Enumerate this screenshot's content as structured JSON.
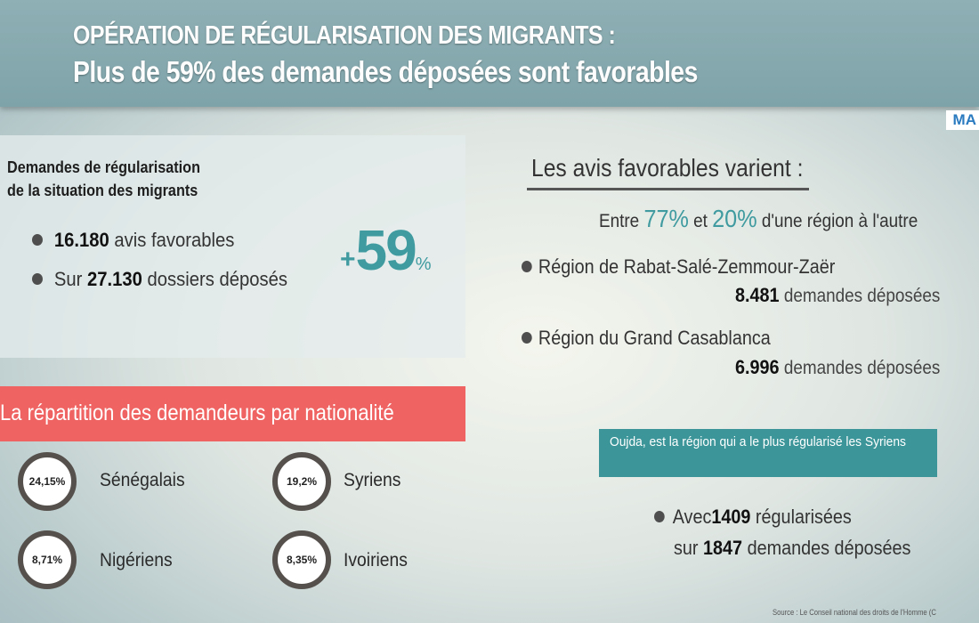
{
  "header": {
    "title_line1": "OPÉRATION DE RÉGULARISATION DES MIGRANTS :",
    "title_line2": "Plus de 59% des demandes déposées sont favorables",
    "logo": "MA"
  },
  "requests": {
    "heading_line1": "Demandes de régularisation",
    "heading_line2": "de la situation des migrants",
    "favorable_count": "16.180",
    "favorable_label": "avis favorables",
    "submitted_prefix": "Sur",
    "submitted_count": "27.130",
    "submitted_label": "dossiers déposés",
    "big_plus": "+",
    "big_value": "59",
    "big_unit": "%"
  },
  "nationality": {
    "banner": "La répartition des demandeurs par nationalité",
    "items": [
      {
        "percent": "24,15%",
        "label": "Sénégalais"
      },
      {
        "percent": "19,2%",
        "label": "Syriens"
      },
      {
        "percent": "8,71%",
        "label": "Nigériens"
      },
      {
        "percent": "8,35%",
        "label": "Ivoiriens"
      }
    ]
  },
  "regions": {
    "heading": "Les avis favorables varient :",
    "range_prefix": "Entre",
    "range_high": "77%",
    "range_mid": "et",
    "range_low": "20%",
    "range_suffix": "d'une région à l'autre",
    "items": [
      {
        "name": "Région de Rabat-Salé-Zemmour-Zaër",
        "count": "8.481",
        "count_label": "demandes déposées"
      },
      {
        "name": "Région du Grand Casablanca",
        "count": "6.996",
        "count_label": "demandes déposées"
      }
    ]
  },
  "oujda": {
    "note": "Oujda, est la région qui a le plus régularisé les Syriens",
    "line1_prefix": "Avec",
    "line1_count": "1409",
    "line1_label": "régularisées",
    "line2_prefix": "sur",
    "line2_count": "1847",
    "line2_label": "demandes déposées"
  },
  "source": "Source : Le Conseil national des droits de l'Homme (C"
}
